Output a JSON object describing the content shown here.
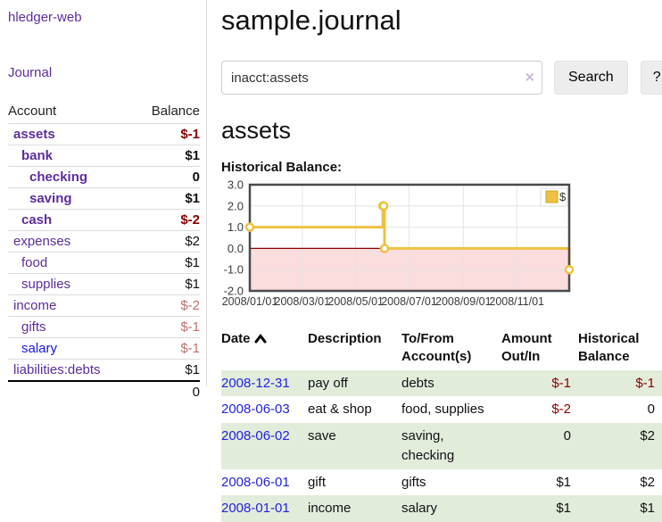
{
  "app": {
    "brand": "hledger-web"
  },
  "sidebar": {
    "journal_label": "Journal",
    "accounts": {
      "headers": [
        "Account",
        "Balance"
      ],
      "rows": [
        {
          "name": "assets",
          "indent": 0,
          "bold": true,
          "balance": "$-1",
          "balance_style": "neg-strong"
        },
        {
          "name": "bank",
          "indent": 1,
          "bold": true,
          "balance": "$1",
          "balance_style": "normal"
        },
        {
          "name": "checking",
          "indent": 2,
          "bold": true,
          "balance": "0",
          "balance_style": "normal"
        },
        {
          "name": "saving",
          "indent": 2,
          "bold": true,
          "balance": "$1",
          "balance_style": "normal"
        },
        {
          "name": "cash",
          "indent": 1,
          "bold": true,
          "balance": "$-2",
          "balance_style": "neg-strong"
        },
        {
          "name": "expenses",
          "indent": 0,
          "bold": false,
          "balance": "$2",
          "balance_style": "normal"
        },
        {
          "name": "food",
          "indent": 1,
          "bold": false,
          "balance": "$1",
          "balance_style": "normal"
        },
        {
          "name": "supplies",
          "indent": 1,
          "bold": false,
          "balance": "$1",
          "balance_style": "normal"
        },
        {
          "name": "income",
          "indent": 0,
          "bold": false,
          "balance": "$-2",
          "balance_style": "neg-soft"
        },
        {
          "name": "gifts",
          "indent": 1,
          "bold": false,
          "balance": "$-1",
          "balance_style": "neg-soft"
        },
        {
          "name": "salary",
          "indent": 1,
          "bold": false,
          "balance": "$-1",
          "balance_style": "neg-soft",
          "link_style": "blue"
        },
        {
          "name": "liabilities:debts",
          "indent": 0,
          "bold": false,
          "balance": "$1",
          "balance_style": "normal"
        }
      ],
      "total": "0"
    }
  },
  "main": {
    "title": "sample.journal",
    "search": {
      "value": "inacct:assets",
      "clear_icon": "×",
      "button_label": "Search",
      "help_label": "?"
    },
    "account_heading": "assets",
    "chart_label": "Historical Balance:"
  },
  "chart_data": {
    "type": "line",
    "title": "Historical Balance",
    "step": true,
    "series": [
      {
        "name": "$",
        "color": "#edc240",
        "points": [
          [
            "2008-01-01",
            1
          ],
          [
            "2008-06-01",
            2
          ],
          [
            "2008-06-02",
            2
          ],
          [
            "2008-06-03",
            0
          ],
          [
            "2008-12-31",
            -1
          ]
        ]
      }
    ],
    "x_ticks": [
      "2008/01/01",
      "2008/03/01",
      "2008/05/01",
      "2008/07/01",
      "2008/09/01",
      "2008/11/01"
    ],
    "y_ticks": [
      3.0,
      2.0,
      1.0,
      0.0,
      -1.0,
      -2.0
    ],
    "xlim": [
      "2008-01-01",
      "2008-12-31"
    ],
    "ylim": [
      -2,
      3
    ],
    "legend_position": "top-right",
    "colors": {
      "negative_region": "#fbdddd",
      "zero_line": "#8b0000",
      "border": "#4a4a4a",
      "grid": "#e4e4e4",
      "tick_text": "#3a3a3a",
      "legend_swatch_border": "#c9a42e"
    }
  },
  "register": {
    "headers": {
      "date": "Date",
      "description": "Description",
      "accounts": "To/From Account(s)",
      "amount": "Amount Out/In",
      "balance": "Historical Balance"
    },
    "rows": [
      {
        "date": "2008-12-31",
        "description": "pay off",
        "accounts": "debts",
        "amount": "$-1",
        "amount_neg": true,
        "balance": "$-1",
        "balance_neg": true
      },
      {
        "date": "2008-06-03",
        "description": "eat & shop",
        "accounts": "food, supplies",
        "amount": "$-2",
        "amount_neg": true,
        "balance": "0",
        "balance_neg": false
      },
      {
        "date": "2008-06-02",
        "description": "save",
        "accounts": "saving, checking",
        "amount": "0",
        "amount_neg": false,
        "balance": "$2",
        "balance_neg": false
      },
      {
        "date": "2008-06-01",
        "description": "gift",
        "accounts": "gifts",
        "amount": "$1",
        "amount_neg": false,
        "balance": "$2",
        "balance_neg": false
      },
      {
        "date": "2008-01-01",
        "description": "income",
        "accounts": "salary",
        "amount": "$1",
        "amount_neg": false,
        "balance": "$1",
        "balance_neg": false
      }
    ]
  }
}
